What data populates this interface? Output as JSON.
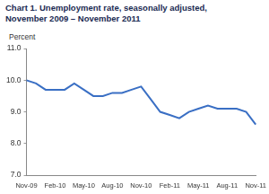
{
  "chart_data": {
    "type": "line",
    "title": "Chart 1. Unemployment rate, seasonally adjusted,",
    "subtitle": "November 2009 – November 2011",
    "ylabel": "Percent",
    "categories": [
      "Nov-09",
      null,
      null,
      "Feb-10",
      null,
      null,
      "May-10",
      null,
      null,
      "Aug-10",
      null,
      null,
      "Nov-10",
      null,
      null,
      "Feb-11",
      null,
      null,
      "May-11",
      null,
      null,
      "Aug-11",
      null,
      null,
      "Nov-11"
    ],
    "values": [
      10.0,
      9.9,
      9.7,
      9.7,
      9.7,
      9.9,
      9.7,
      9.5,
      9.5,
      9.6,
      9.6,
      9.7,
      9.8,
      9.4,
      9.0,
      8.9,
      8.8,
      9.0,
      9.1,
      9.2,
      9.1,
      9.1,
      9.1,
      9.0,
      8.6
    ],
    "color": "#3a6fc4",
    "ylim": [
      7,
      11
    ],
    "yticks": [
      {
        "value": 7,
        "label": "7.0"
      },
      {
        "value": 8,
        "label": "8.0"
      },
      {
        "value": 9,
        "label": "9.0"
      },
      {
        "value": 10,
        "label": "10.0"
      },
      {
        "value": 11,
        "label": "11.0"
      }
    ],
    "grid": false,
    "marker": "none"
  }
}
